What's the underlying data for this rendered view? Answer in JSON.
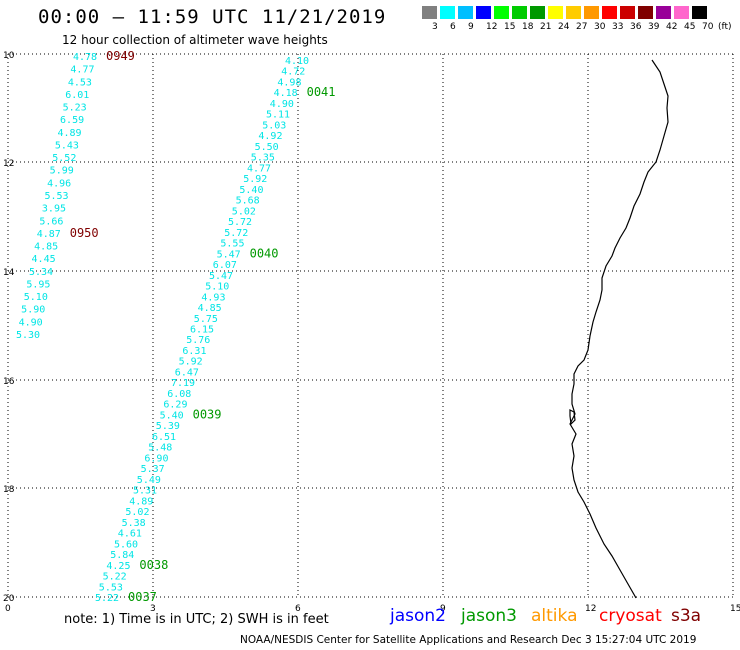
{
  "title": "00:00 – 11:59 UTC 11/21/2019",
  "subtitle": "12 hour collection of altimeter wave heights",
  "colorbar": {
    "unit": "(ft)",
    "labels": [
      "3",
      "6",
      "9",
      "12",
      "15",
      "18",
      "21",
      "24",
      "27",
      "30",
      "33",
      "36",
      "39",
      "42",
      "45",
      "70"
    ],
    "colors": [
      "#808080",
      "#00ffff",
      "#00bfff",
      "#0000ff",
      "#00ff00",
      "#00cc00",
      "#009900",
      "#ffff00",
      "#ffcc00",
      "#ff9900",
      "#ff0000",
      "#cc0000",
      "#800000",
      "#990099",
      "#ff66cc",
      "#000000"
    ]
  },
  "axes": {
    "x_ticks": [
      "0",
      "3",
      "6",
      "9",
      "12",
      "15"
    ],
    "y_ticks": [
      "10",
      "12",
      "14",
      "16",
      "18",
      "20"
    ]
  },
  "note": "note: 1) Time is in UTC; 2) SWH is in feet",
  "satellites": [
    {
      "name": "jason2",
      "color": "#0000ff"
    },
    {
      "name": "jason3",
      "color": "#009900"
    },
    {
      "name": "altika",
      "color": "#ff9900"
    },
    {
      "name": "cryosat",
      "color": "#ff0000"
    },
    {
      "name": "s3a",
      "color": "#800000"
    }
  ],
  "credit": "NOAA/NESDIS Center for Satellite Applications and Research    Dec  3 15:27:04 UTC 2019",
  "pass_label_color": "#009900",
  "pass_label_color_dark": "#800000",
  "value_color": "#00e5e5",
  "track_a": {
    "values": [
      "4.78",
      "4.77",
      "4.53",
      "6.01",
      "5.23",
      "6.59",
      "4.89",
      "5.43",
      "5.52",
      "5.99",
      "4.96",
      "5.53",
      "3.95",
      "5.66",
      "4.87",
      "4.85",
      "4.45",
      "5.34",
      "5.95",
      "5.10",
      "5.90",
      "4.90",
      "5.30"
    ],
    "time_labels": [
      {
        "text": "0949",
        "color": "dark",
        "row": 0
      },
      {
        "text": "0950",
        "color": "dark",
        "row": 14
      }
    ]
  },
  "track_b": {
    "values": [
      "4.10",
      "4.72",
      "4.98",
      "4.18",
      "4.90",
      "5.11",
      "5.03",
      "4.92",
      "5.50",
      "5.35",
      "4.77",
      "5.92",
      "5.40",
      "5.68",
      "5.02",
      "5.72",
      "5.72",
      "5.55",
      "5.47",
      "6.07",
      "5.47",
      "5.10",
      "4.93",
      "4.85",
      "5.75",
      "6.15",
      "5.76",
      "6.31",
      "5.92",
      "6.47",
      "7.19",
      "6.08",
      "6.29",
      "5.40",
      "5.39",
      "6.51",
      "5.48",
      "6.90",
      "5.37",
      "5.49",
      "5.31",
      "4.89",
      "5.02",
      "5.38",
      "4.61",
      "5.60",
      "5.84",
      "4.25",
      "5.22",
      "5.53",
      "5.22"
    ],
    "time_labels": [
      {
        "text": "0041",
        "color": "green",
        "row": 3
      },
      {
        "text": "0040",
        "color": "green",
        "row": 18
      },
      {
        "text": "0039",
        "color": "green",
        "row": 33
      },
      {
        "text": "0038",
        "color": "green",
        "row": 47
      },
      {
        "text": "0037",
        "color": "green",
        "row": 50
      }
    ]
  }
}
